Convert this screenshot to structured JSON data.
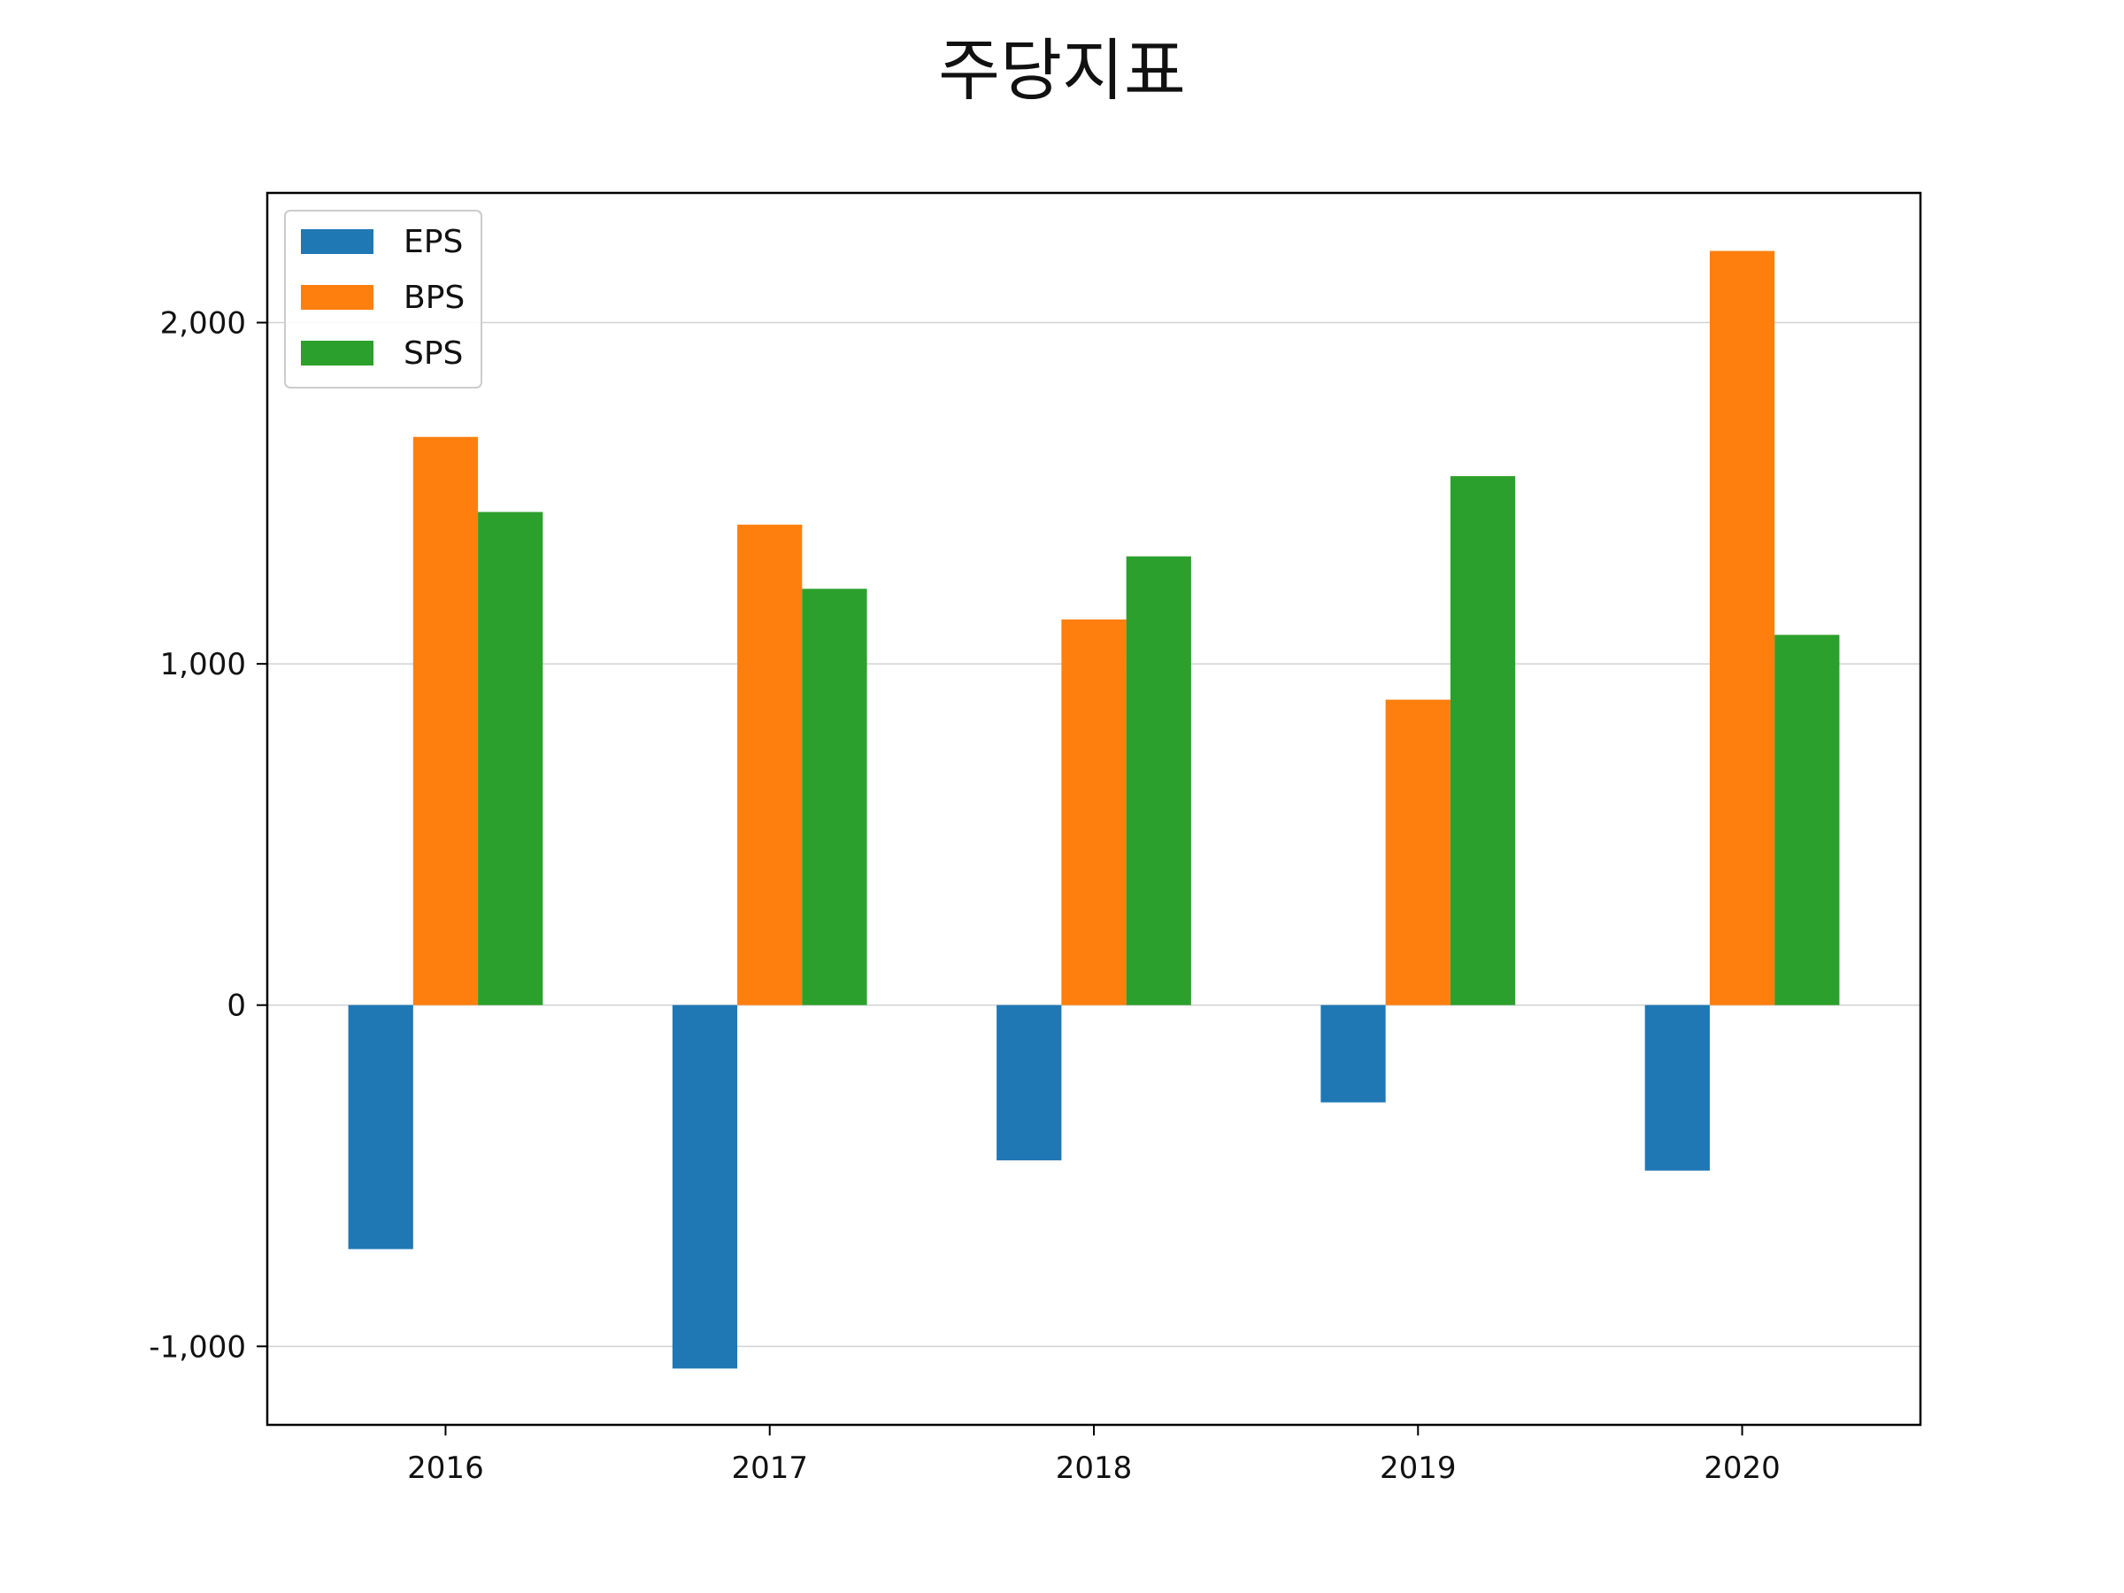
{
  "chart_data": {
    "type": "bar",
    "title": "주당지표",
    "xlabel": "",
    "ylabel": "",
    "categories": [
      "2016",
      "2017",
      "2018",
      "2019",
      "2020"
    ],
    "series": [
      {
        "name": "EPS",
        "color": "#1f77b4",
        "values": [
          -715,
          -1065,
          -455,
          -285,
          -485
        ]
      },
      {
        "name": "BPS",
        "color": "#ff7f0e",
        "values": [
          1665,
          1408,
          1130,
          895,
          2210
        ]
      },
      {
        "name": "SPS",
        "color": "#2ca02c",
        "values": [
          1445,
          1220,
          1315,
          1550,
          1085
        ]
      }
    ],
    "ylim": [
      -1230,
      2380
    ],
    "yticks": [
      -1000,
      0,
      1000,
      2000
    ],
    "ytick_labels": [
      "-1,000",
      "0",
      "1,000",
      "2,000"
    ],
    "grid": "horizontal",
    "legend_position": "top-left"
  }
}
